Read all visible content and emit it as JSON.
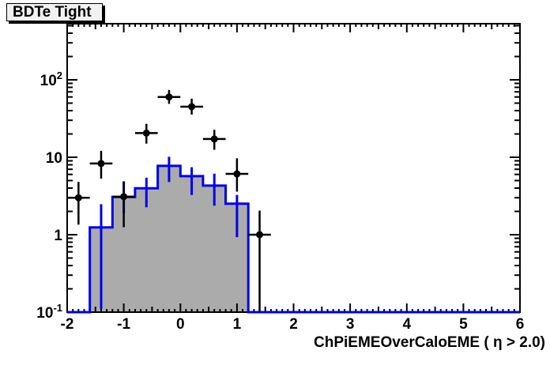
{
  "title_box": {
    "label": "BDTe Tight"
  },
  "chart_data": {
    "type": "bar",
    "title": "BDTe Tight",
    "xlabel": "ChPiEMEOverCaloEME (  η > 2.0)",
    "ylabel": "",
    "x_range": [
      -2,
      6
    ],
    "y_scale": "log",
    "y_range": [
      0.1,
      530
    ],
    "grid": false,
    "legend": null,
    "x_major_ticks": [
      -2,
      -1,
      0,
      1,
      2,
      3,
      4,
      5,
      6
    ],
    "x_tick_labels": [
      "-2",
      "-1",
      "0",
      "1",
      "2",
      "3",
      "4",
      "5",
      "6"
    ],
    "x_medium_step": 0.5,
    "x_minor_step": 0.1,
    "y_major_ticks": [
      0.1,
      1,
      10,
      100
    ],
    "y_tick_labels": [
      {
        "v": 0.1,
        "base": "10",
        "exp": "-1"
      },
      {
        "v": 1,
        "base": "1",
        "exp": ""
      },
      {
        "v": 10,
        "base": "10",
        "exp": ""
      },
      {
        "v": 100,
        "base": "10",
        "exp": "2"
      }
    ],
    "colors": {
      "histogram_fill": "#ababab",
      "histogram_line": "#0000ee",
      "points": "#000000",
      "frame": "#000000"
    },
    "histogram": {
      "role": "filled-histogram",
      "bin_edges": [
        -1.6,
        -1.2,
        -0.8,
        -0.4,
        0,
        0.4,
        0.8,
        1.2
      ],
      "values": [
        1.24,
        3.07,
        3.98,
        7.74,
        5.7,
        4.3,
        2.51
      ],
      "err_low": [
        0.11,
        1.9,
        2.26,
        4.79,
        3.26,
        2.37,
        0.93
      ],
      "err_high": [
        2.48,
        4.9,
        5.45,
        10.15,
        7.43,
        6.13,
        3.26
      ]
    },
    "points": {
      "role": "data-points",
      "xerr": 0.2,
      "x": [
        -1.8,
        -1.4,
        -1.0,
        -0.6,
        -0.2,
        0.2,
        0.6,
        1.0,
        1.4
      ],
      "y": [
        3.0,
        8.3,
        3.1,
        20.5,
        60,
        45,
        17.2,
        6.1,
        1.0
      ],
      "y_low": [
        1.35,
        5.3,
        1.25,
        15.0,
        49,
        35.6,
        12.5,
        3.6,
        0.1
      ],
      "y_high": [
        4.8,
        12.1,
        4.8,
        27.0,
        74,
        57,
        22.6,
        9.7,
        2.05
      ]
    }
  }
}
